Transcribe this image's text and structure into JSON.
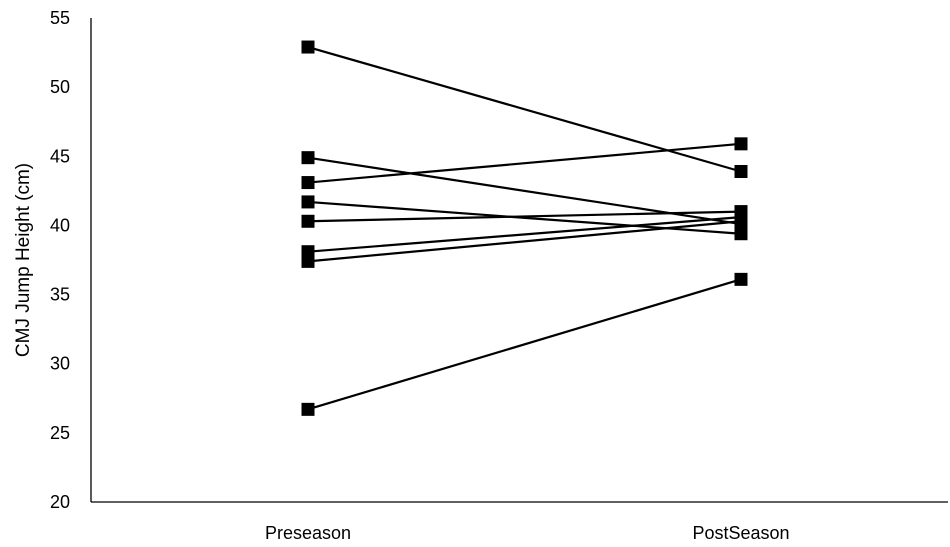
{
  "chart_data": {
    "type": "line",
    "title": "",
    "xlabel": "",
    "ylabel": "CMJ Jump Height (cm)",
    "categories": [
      "Preseason",
      "PostSeason"
    ],
    "ylim": [
      20,
      55
    ],
    "yticks": [
      20,
      25,
      30,
      35,
      40,
      45,
      50,
      55
    ],
    "grid": false,
    "legend": "none",
    "marker": "square",
    "line_color": "#000000",
    "series": [
      {
        "values": [
          52.9,
          43.9
        ]
      },
      {
        "values": [
          44.9,
          40.1
        ]
      },
      {
        "values": [
          43.1,
          45.9
        ]
      },
      {
        "values": [
          41.7,
          39.4
        ]
      },
      {
        "values": [
          40.3,
          41.0
        ]
      },
      {
        "values": [
          38.1,
          40.6
        ]
      },
      {
        "values": [
          37.4,
          40.3
        ]
      },
      {
        "values": [
          26.7,
          36.1
        ]
      }
    ]
  }
}
